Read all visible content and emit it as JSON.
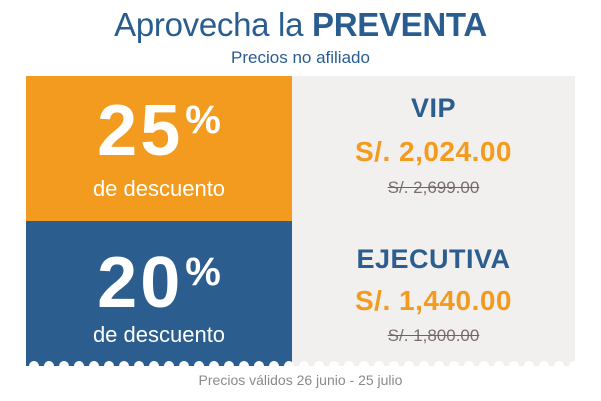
{
  "header": {
    "title_prefix": "Aprovecha la ",
    "title_emphasis": "PREVENTA",
    "subtitle": "Precios no afiliado"
  },
  "offers": [
    {
      "discount_number": "25",
      "discount_sign": "%",
      "discount_label": "de descuento",
      "tier": "VIP",
      "price": "S/. 2,024.00",
      "old_price": "S/. 2,699.00",
      "accent_color": "#f29b1f"
    },
    {
      "discount_number": "20",
      "discount_sign": "%",
      "discount_label": "de descuento",
      "tier": "EJECUTIVA",
      "price": "S/. 1,440.00",
      "old_price": "S/. 1,800.00",
      "accent_color": "#2b5d8e"
    }
  ],
  "footer": {
    "note": "Precios válidos 26 junio - 25 julio"
  },
  "colors": {
    "brand_blue": "#2b5d8e",
    "brand_orange": "#f29b1f",
    "panel_bg": "#f2f0ef"
  }
}
